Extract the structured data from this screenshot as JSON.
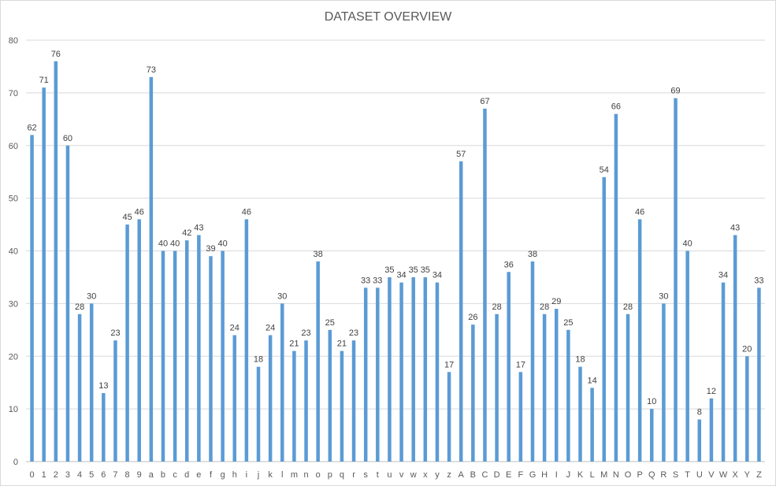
{
  "chart_data": {
    "type": "bar",
    "title": "DATASET OVERVIEW",
    "xlabel": "",
    "ylabel": "",
    "ylim": [
      0,
      80
    ],
    "yticks": [
      0,
      10,
      20,
      30,
      40,
      50,
      60,
      70,
      80
    ],
    "grid": true,
    "legend": "none",
    "bar_color": "#5b9bd5",
    "categories": [
      "0",
      "1",
      "2",
      "3",
      "4",
      "5",
      "6",
      "7",
      "8",
      "9",
      "a",
      "b",
      "c",
      "d",
      "e",
      "f",
      "g",
      "h",
      "i",
      "j",
      "k",
      "l",
      "m",
      "n",
      "o",
      "p",
      "q",
      "r",
      "s",
      "t",
      "u",
      "v",
      "w",
      "x",
      "y",
      "z",
      "A",
      "B",
      "C",
      "D",
      "E",
      "F",
      "G",
      "H",
      "I",
      "J",
      "K",
      "L",
      "M",
      "N",
      "O",
      "P",
      "Q",
      "R",
      "S",
      "T",
      "U",
      "V",
      "W",
      "X",
      "Y",
      "Z"
    ],
    "values": [
      62,
      71,
      76,
      60,
      28,
      30,
      13,
      23,
      45,
      46,
      73,
      40,
      40,
      42,
      43,
      39,
      40,
      24,
      46,
      18,
      24,
      30,
      21,
      23,
      38,
      25,
      21,
      23,
      33,
      33,
      35,
      34,
      35,
      35,
      34,
      17,
      57,
      26,
      67,
      28,
      36,
      17,
      38,
      28,
      29,
      25,
      18,
      14,
      54,
      66,
      28,
      46,
      10,
      30,
      69,
      40,
      8,
      12,
      34,
      43,
      20,
      33
    ]
  }
}
